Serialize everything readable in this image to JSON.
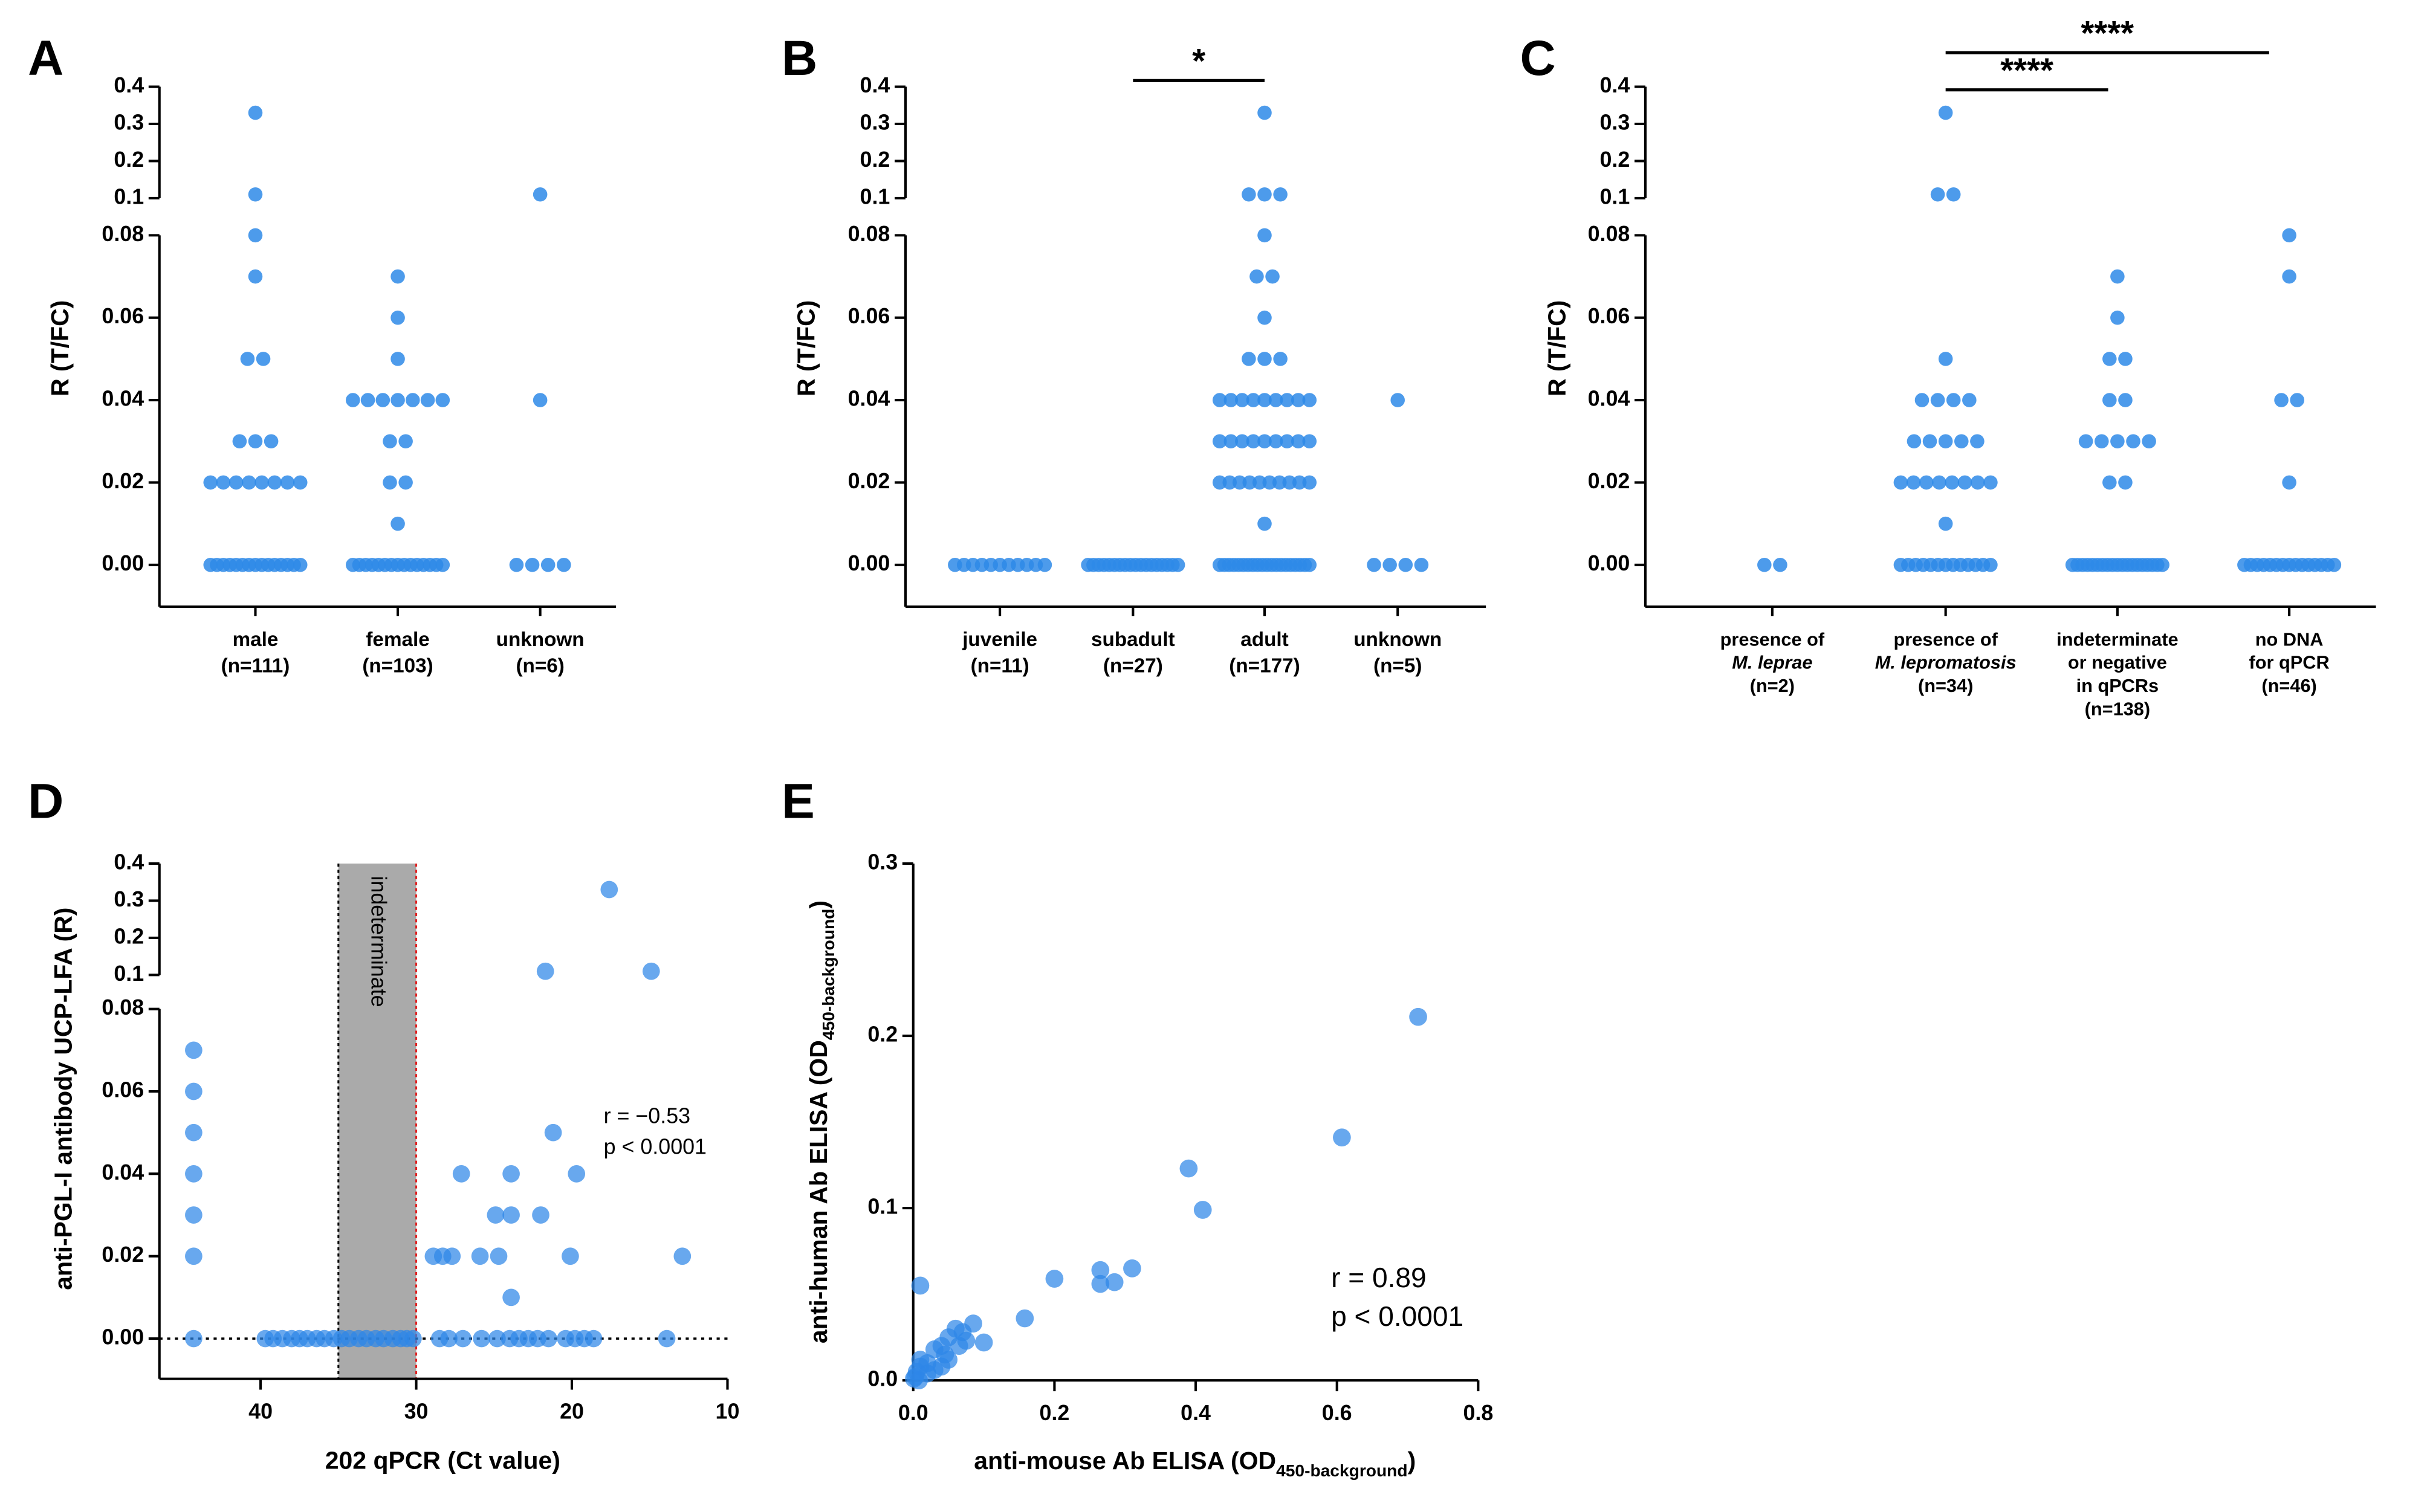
{
  "chart_data": [
    {
      "type": "dot",
      "panel_label": "A",
      "y_label": "R (T/FC)",
      "categories": [
        [
          "male",
          "(n=111)"
        ],
        [
          "female",
          "(n=103)"
        ],
        [
          "unknown",
          "(n=6)"
        ]
      ],
      "values": [
        [
          0.33,
          0.11,
          0.08,
          0.07,
          0.05,
          0.05,
          0.03,
          0.03,
          0.03,
          0.02,
          0.02,
          0.02,
          0.02,
          0.02,
          0.02,
          0.02,
          0.02,
          0,
          0,
          0,
          0,
          0,
          0,
          0,
          0,
          0,
          0,
          0,
          0,
          0,
          0,
          0
        ],
        [
          0.07,
          0.06,
          0.05,
          0.04,
          0.04,
          0.04,
          0.04,
          0.04,
          0.04,
          0.04,
          0.03,
          0.03,
          0.02,
          0.02,
          0.01,
          0,
          0,
          0,
          0,
          0,
          0,
          0,
          0,
          0,
          0,
          0,
          0,
          0,
          0,
          0
        ],
        [
          0.11,
          0.04,
          0,
          0,
          0,
          0
        ]
      ],
      "color": "#2e8ae8",
      "ylim_segments": [
        [
          0,
          0.08
        ],
        [
          0.1,
          0.4
        ]
      ],
      "yticks": [
        {
          "value": 0,
          "label": "0.00"
        },
        {
          "value": 0.02,
          "label": "0.02"
        },
        {
          "value": 0.04,
          "label": "0.04"
        },
        {
          "value": 0.06,
          "label": "0.06"
        },
        {
          "value": 0.08,
          "label": "0.08"
        },
        0.1,
        0.2,
        0.3,
        0.4
      ]
    },
    {
      "type": "dot",
      "panel_label": "B",
      "y_label": "R (T/FC)",
      "categories": [
        [
          "juvenile",
          "(n=11)"
        ],
        [
          "subadult",
          "(n=27)"
        ],
        [
          "adult",
          "(n=177)"
        ],
        [
          "unknown",
          "(n=5)"
        ]
      ],
      "values": [
        [
          0,
          0,
          0,
          0,
          0,
          0,
          0,
          0,
          0,
          0,
          0
        ],
        [
          0,
          0,
          0,
          0,
          0,
          0,
          0,
          0,
          0,
          0,
          0,
          0,
          0,
          0,
          0,
          0,
          0,
          0
        ],
        [
          0.33,
          0.11,
          0.11,
          0.11,
          0.08,
          0.07,
          0.07,
          0.06,
          0.05,
          0.05,
          0.05,
          0.04,
          0.04,
          0.04,
          0.04,
          0.04,
          0.04,
          0.04,
          0.04,
          0.04,
          0.03,
          0.03,
          0.03,
          0.03,
          0.03,
          0.03,
          0.03,
          0.03,
          0.03,
          0.02,
          0.02,
          0.02,
          0.02,
          0.02,
          0.02,
          0.02,
          0.02,
          0.02,
          0.02,
          0.01,
          0,
          0,
          0,
          0,
          0,
          0,
          0,
          0,
          0,
          0,
          0,
          0,
          0,
          0,
          0,
          0,
          0,
          0,
          0,
          0
        ],
        [
          0.04,
          0,
          0,
          0,
          0
        ]
      ],
      "color": "#2e8ae8",
      "comparisons": [
        "*"
      ],
      "ylim_segments": [
        [
          0,
          0.08
        ],
        [
          0.1,
          0.4
        ]
      ],
      "yticks": [
        {
          "value": 0,
          "label": "0.00"
        },
        {
          "value": 0.02,
          "label": "0.02"
        },
        {
          "value": 0.04,
          "label": "0.04"
        },
        {
          "value": 0.06,
          "label": "0.06"
        },
        {
          "value": 0.08,
          "label": "0.08"
        },
        0.1,
        0.2,
        0.3,
        0.4
      ]
    },
    {
      "type": "dot",
      "panel_label": "C",
      "y_label": "R (T/FC)",
      "categories": [
        [
          "presence of",
          "M. leprae",
          "(n=2)"
        ],
        [
          "presence of",
          "M. lepromatosis",
          "(n=34)"
        ],
        [
          "indeterminate",
          "or negative",
          "in qPCRs",
          "(n=138)"
        ],
        [
          "no DNA",
          "for qPCR",
          "(n=46)"
        ]
      ],
      "values": [
        [
          0,
          0
        ],
        [
          0.33,
          0.11,
          0.11,
          0.05,
          0.04,
          0.04,
          0.04,
          0.04,
          0.03,
          0.03,
          0.03,
          0.03,
          0.03,
          0.02,
          0.02,
          0.02,
          0.02,
          0.02,
          0.02,
          0.02,
          0.02,
          0.01,
          0,
          0,
          0,
          0,
          0,
          0,
          0,
          0,
          0,
          0,
          0,
          0,
          0
        ],
        [
          0.07,
          0.06,
          0.05,
          0.05,
          0.04,
          0.04,
          0.03,
          0.03,
          0.03,
          0.03,
          0.03,
          0.02,
          0.02,
          0,
          0,
          0,
          0,
          0,
          0,
          0,
          0,
          0,
          0,
          0,
          0,
          0,
          0,
          0,
          0,
          0,
          0,
          0
        ],
        [
          0.08,
          0.07,
          0.04,
          0.04,
          0.02,
          0,
          0,
          0,
          0,
          0,
          0,
          0,
          0,
          0,
          0,
          0,
          0,
          0,
          0,
          0
        ]
      ],
      "color": "#2e8ae8",
      "comparisons": [
        "****",
        "****"
      ],
      "ylim_segments": [
        [
          0,
          0.08
        ],
        [
          0.1,
          0.4
        ]
      ],
      "yticks": [
        {
          "value": 0,
          "label": "0.00"
        },
        {
          "value": 0.02,
          "label": "0.02"
        },
        {
          "value": 0.04,
          "label": "0.04"
        },
        {
          "value": 0.06,
          "label": "0.06"
        },
        {
          "value": 0.08,
          "label": "0.08"
        },
        0.1,
        0.2,
        0.3,
        0.4
      ]
    },
    {
      "type": "scatter",
      "panel_label": "D",
      "y_label": "anti-PGL-I antibody UCP-LFA (R)",
      "x_label": "202 qPCR (Ct value)",
      "x": [
        44.3,
        44.3,
        44.3,
        44.3,
        44.3,
        44.3,
        44.3,
        17.6,
        21.7,
        14.9,
        21.2,
        27.1,
        23.9,
        19.7,
        24.9,
        23.9,
        22.0,
        28.9,
        28.3,
        27.7,
        25.9,
        24.7,
        20.1,
        12.9,
        23.9,
        39.7,
        39.2,
        38.6,
        38.0,
        37.5,
        37.0,
        36.4,
        35.9,
        35.3,
        34.8,
        34.3,
        33.7,
        33.2,
        32.6,
        32.1,
        31.5,
        31.0,
        30.6,
        30.2,
        28.5,
        27.9,
        27.0,
        25.8,
        24.8,
        24.0,
        23.4,
        22.8,
        22.2,
        21.5,
        20.4,
        19.8,
        19.2,
        18.6,
        13.9
      ],
      "values": [
        0.07,
        0.06,
        0.05,
        0.04,
        0.03,
        0.02,
        0,
        0.33,
        0.11,
        0.11,
        0.05,
        0.04,
        0.04,
        0.04,
        0.03,
        0.03,
        0.03,
        0.02,
        0.02,
        0.02,
        0.02,
        0.02,
        0.02,
        0.02,
        0.01,
        0,
        0,
        0,
        0,
        0,
        0,
        0,
        0,
        0,
        0,
        0,
        0,
        0,
        0,
        0,
        0,
        0,
        0,
        0,
        0,
        0,
        0,
        0,
        0,
        0,
        0,
        0,
        0,
        0,
        0,
        0,
        0,
        0,
        0
      ],
      "color": "#2e86e8",
      "shaded_range": [
        35,
        30
      ],
      "shaded_label": "indeterminate",
      "annotations": [
        "r = −0.53",
        "p < 0.0001"
      ],
      "xlim": [
        46.5,
        10
      ],
      "xticks": [
        40,
        30,
        20,
        10
      ],
      "ylim_segments": [
        [
          0,
          0.08
        ],
        [
          0.1,
          0.4
        ]
      ],
      "yticks": [
        {
          "value": 0,
          "label": "0.00"
        },
        {
          "value": 0.02,
          "label": "0.02"
        },
        {
          "value": 0.04,
          "label": "0.04"
        },
        {
          "value": 0.06,
          "label": "0.06"
        },
        {
          "value": 0.08,
          "label": "0.08"
        },
        0.1,
        0.2,
        0.3,
        0.4
      ]
    },
    {
      "type": "scatter",
      "panel_label": "E",
      "y_label": {
        "text": "anti-human Ab ELISA (OD",
        "sub": "450-background",
        "end": ")"
      },
      "x_label": {
        "text": "anti-mouse Ab ELISA (OD",
        "sub": "450-background",
        "end": ")"
      },
      "x": [
        0.715,
        0.607,
        0.39,
        0.41,
        0.31,
        0.265,
        0.265,
        0.285,
        0.2,
        0.158,
        0.01,
        0.1,
        0.085,
        0.07,
        0.075,
        0.06,
        0.05,
        0.04,
        0.03,
        0.05,
        0.04,
        0.02,
        0.01,
        0.005,
        0.003,
        0.01,
        0.02,
        0.03,
        0.008,
        0.001,
        0.045,
        0.065
      ],
      "values": [
        0.211,
        0.141,
        0.123,
        0.099,
        0.065,
        0.064,
        0.056,
        0.057,
        0.059,
        0.036,
        0.055,
        0.022,
        0.033,
        0.028,
        0.023,
        0.03,
        0.025,
        0.02,
        0.018,
        0.012,
        0.008,
        0.01,
        0.008,
        0.005,
        0.002,
        0.012,
        0.004,
        0.006,
        0,
        0.001,
        0.015,
        0.02
      ],
      "color": "#2e86e8",
      "annotations": [
        "r = 0.89",
        "p < 0.0001"
      ],
      "xlim": [
        0,
        0.8
      ],
      "xticks": [
        {
          "value": 0,
          "label": "0.0"
        },
        0.2,
        0.4,
        0.6,
        0.8
      ],
      "ylim": [
        0,
        0.3
      ],
      "yticks": [
        {
          "value": 0,
          "label": "0.0"
        },
        0.1,
        0.2,
        0.3
      ]
    }
  ]
}
